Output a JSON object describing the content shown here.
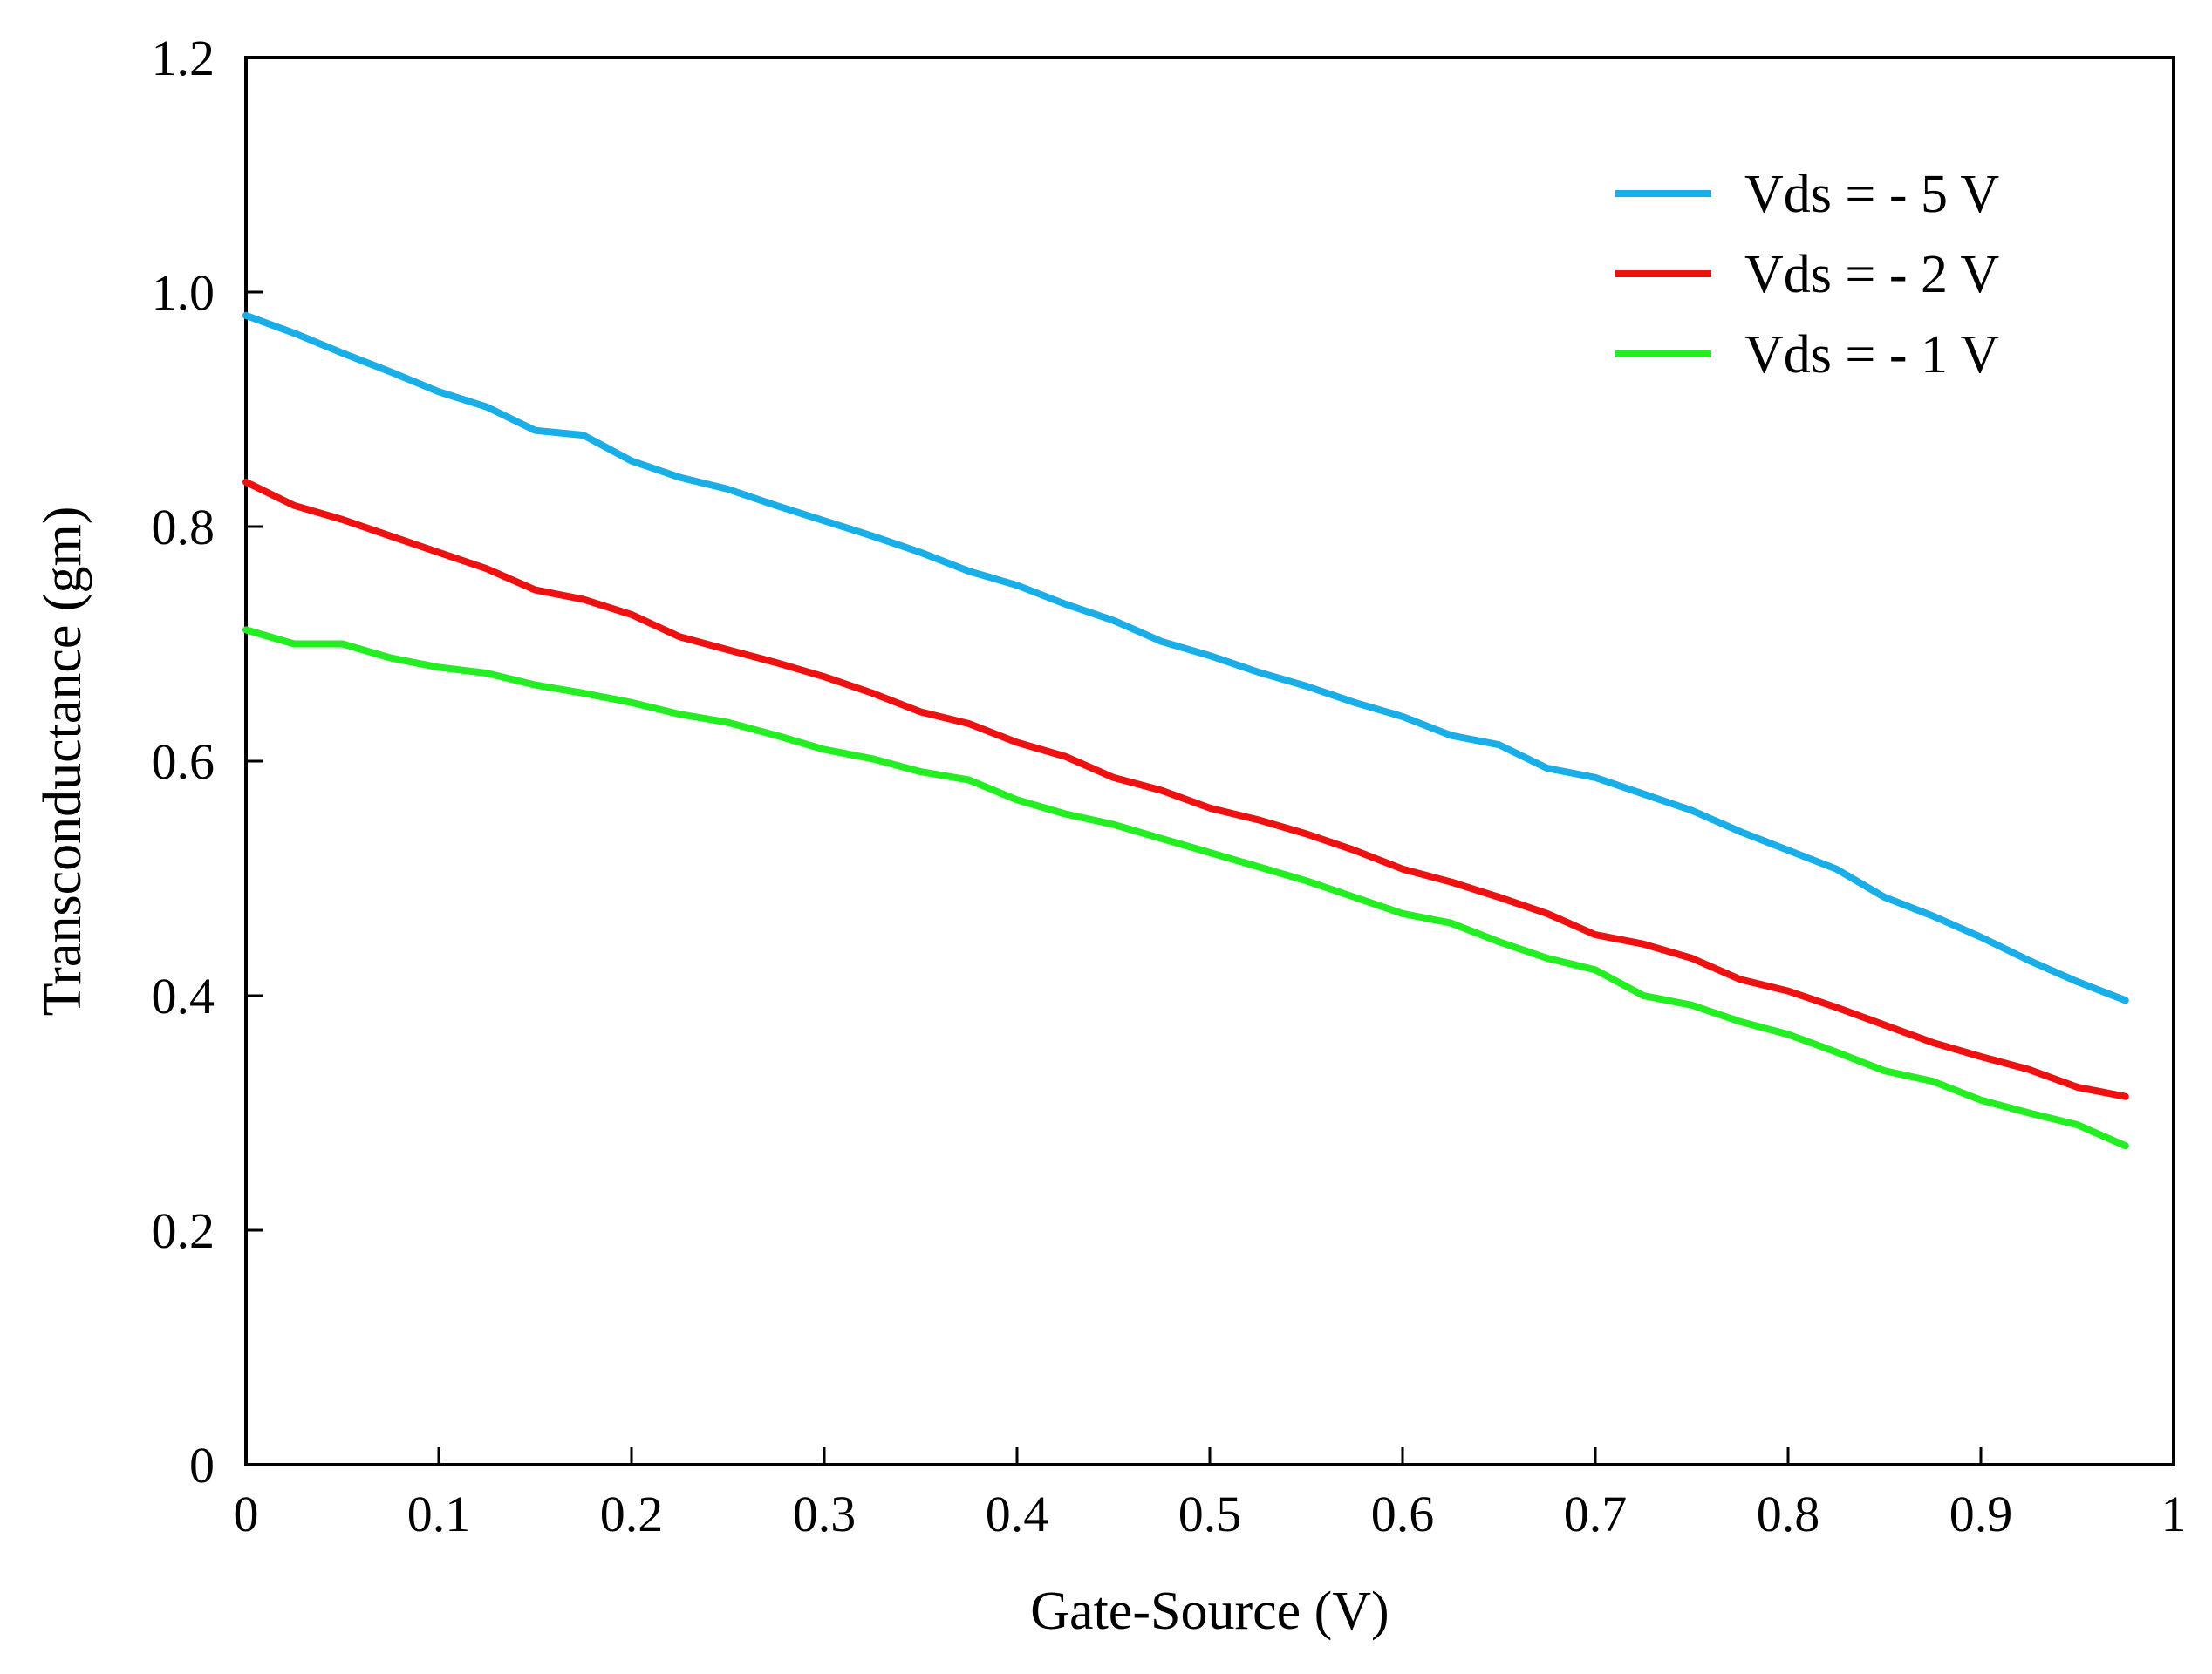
{
  "chart_data": {
    "type": "line",
    "xlabel": "Gate-Source  (V)",
    "ylabel": "Transconductance  (gm)",
    "xlim": [
      0,
      1
    ],
    "ylim": [
      0,
      1.2
    ],
    "x_ticks": [
      0,
      0.1,
      0.2,
      0.3,
      0.4,
      0.5,
      0.6,
      0.7,
      0.8,
      0.9,
      1
    ],
    "x_tick_labels": [
      "0",
      "0.1",
      "0.2",
      "0.3",
      "0.4",
      "0.5",
      "0.6",
      "0.7",
      "0.8",
      "0.9",
      "1"
    ],
    "y_ticks": [
      0,
      0.2,
      0.4,
      0.6,
      0.8,
      1.0,
      1.2
    ],
    "y_tick_labels": [
      "0",
      "0.2",
      "0.4",
      "0.6",
      "0.8",
      "1.0",
      "1.2"
    ],
    "grid": false,
    "legend_position": "top-right",
    "x": [
      0,
      0.025,
      0.05,
      0.075,
      0.1,
      0.125,
      0.15,
      0.175,
      0.2,
      0.225,
      0.25,
      0.275,
      0.3,
      0.325,
      0.35,
      0.375,
      0.4,
      0.425,
      0.45,
      0.475,
      0.5,
      0.525,
      0.55,
      0.575,
      0.6,
      0.625,
      0.65,
      0.675,
      0.7,
      0.725,
      0.75,
      0.775,
      0.8,
      0.825,
      0.85,
      0.875,
      0.9,
      0.925,
      0.95,
      0.975
    ],
    "series": [
      {
        "name": "Vds = - 5 V",
        "color": "#1aaee8",
        "values": [
          0.98,
          0.965,
          0.948,
          0.932,
          0.915,
          0.902,
          0.882,
          0.878,
          0.856,
          0.842,
          0.832,
          0.818,
          0.805,
          0.792,
          0.778,
          0.762,
          0.75,
          0.734,
          0.72,
          0.702,
          0.69,
          0.676,
          0.664,
          0.65,
          0.638,
          0.622,
          0.614,
          0.594,
          0.586,
          0.572,
          0.558,
          0.54,
          0.524,
          0.508,
          0.484,
          0.468,
          0.45,
          0.43,
          0.412,
          0.396
        ]
      },
      {
        "name": "Vds = - 2 V",
        "color": "#ee1111",
        "values": [
          0.838,
          0.818,
          0.806,
          0.792,
          0.778,
          0.764,
          0.746,
          0.738,
          0.725,
          0.706,
          0.695,
          0.684,
          0.672,
          0.658,
          0.642,
          0.632,
          0.616,
          0.604,
          0.586,
          0.575,
          0.56,
          0.55,
          0.538,
          0.524,
          0.508,
          0.497,
          0.484,
          0.47,
          0.452,
          0.444,
          0.432,
          0.414,
          0.404,
          0.39,
          0.375,
          0.36,
          0.348,
          0.337,
          0.322,
          0.314
        ]
      },
      {
        "name": "Vds = - 1 V",
        "color": "#22ee22",
        "values": [
          0.712,
          0.7,
          0.7,
          0.688,
          0.68,
          0.675,
          0.665,
          0.658,
          0.65,
          0.64,
          0.633,
          0.622,
          0.61,
          0.602,
          0.591,
          0.584,
          0.567,
          0.555,
          0.546,
          0.534,
          0.522,
          0.51,
          0.498,
          0.484,
          0.47,
          0.462,
          0.446,
          0.432,
          0.422,
          0.4,
          0.392,
          0.378,
          0.367,
          0.352,
          0.336,
          0.327,
          0.311,
          0.3,
          0.29,
          0.272
        ]
      }
    ]
  }
}
